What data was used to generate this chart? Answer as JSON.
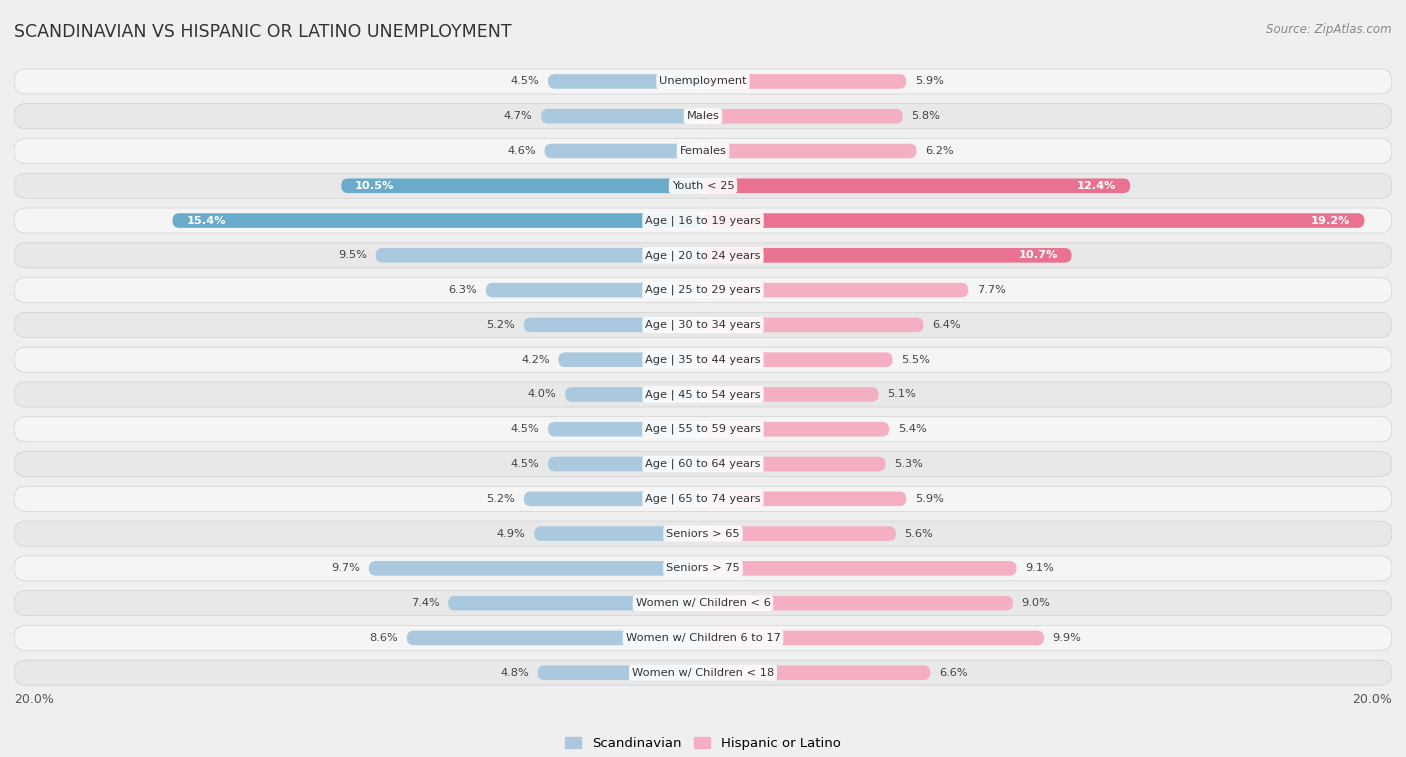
{
  "title": "SCANDINAVIAN VS HISPANIC OR LATINO UNEMPLOYMENT",
  "source": "Source: ZipAtlas.com",
  "categories": [
    "Unemployment",
    "Males",
    "Females",
    "Youth < 25",
    "Age | 16 to 19 years",
    "Age | 20 to 24 years",
    "Age | 25 to 29 years",
    "Age | 30 to 34 years",
    "Age | 35 to 44 years",
    "Age | 45 to 54 years",
    "Age | 55 to 59 years",
    "Age | 60 to 64 years",
    "Age | 65 to 74 years",
    "Seniors > 65",
    "Seniors > 75",
    "Women w/ Children < 6",
    "Women w/ Children 6 to 17",
    "Women w/ Children < 18"
  ],
  "scandinavian": [
    4.5,
    4.7,
    4.6,
    10.5,
    15.4,
    9.5,
    6.3,
    5.2,
    4.2,
    4.0,
    4.5,
    4.5,
    5.2,
    4.9,
    9.7,
    7.4,
    8.6,
    4.8
  ],
  "hispanic": [
    5.9,
    5.8,
    6.2,
    12.4,
    19.2,
    10.7,
    7.7,
    6.4,
    5.5,
    5.1,
    5.4,
    5.3,
    5.9,
    5.6,
    9.1,
    9.0,
    9.9,
    6.6
  ],
  "scand_color_normal": "#aac9de",
  "scand_color_dark": "#6aaacb",
  "hisp_color_normal": "#f5afc3",
  "hisp_color_dark": "#e8728f",
  "row_bg_light": "#f5f5f5",
  "row_bg_dark": "#e8e8e8",
  "row_outline": "#d0d0d0",
  "bg_color": "#efefef",
  "xlim": 20.0,
  "label_color_white": "#ffffff",
  "label_color_dark": "#555555",
  "legend_scand": "Scandinavian",
  "legend_hisp": "Hispanic or Latino",
  "val_threshold": 10.0
}
